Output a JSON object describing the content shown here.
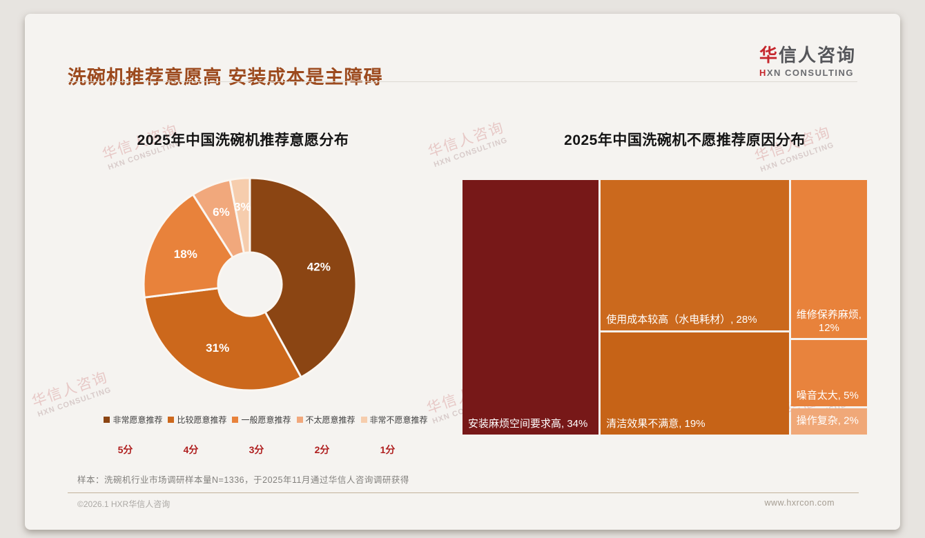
{
  "page": {
    "title": "洗碗机推荐意愿高 安装成本是主障碍",
    "logo": {
      "cn_first": "华",
      "cn_rest": "信人咨询",
      "en_first": "H",
      "en_rest": "XN CONSULTING"
    },
    "watermark": {
      "line1": "华信人咨询",
      "line2": "HXN CONSULTING"
    },
    "sample_note": "样本：洗碗机行业市场调研样本量N=1336，于2025年11月通过华信人咨询调研获得",
    "footer": {
      "copyright": "©2026.1 HXR华信人咨询",
      "website": "www.hxrcon.com"
    }
  },
  "chart_data": [
    {
      "type": "pie",
      "subtype": "donut",
      "title": "2025年中国洗碗机推荐意愿分布",
      "categories": [
        "非常愿意推荐",
        "比较愿意推荐",
        "一般愿意推荐",
        "不太愿意推荐",
        "非常不愿意推荐"
      ],
      "values": [
        42,
        31,
        18,
        6,
        3
      ],
      "labels": [
        "42%",
        "31%",
        "18%",
        "6%",
        "3%"
      ],
      "colors": [
        "#8B4513",
        "#CC681C",
        "#E8823B",
        "#F1A87C",
        "#F6CDAD"
      ],
      "score_labels": [
        "5分",
        "4分",
        "3分",
        "2分",
        "1分"
      ],
      "legend_position": "bottom",
      "start_angle_deg": 0,
      "direction": "clockwise"
    },
    {
      "type": "treemap",
      "title": "2025年中国洗碗机不愿推荐原因分布",
      "items": [
        {
          "label": "安装麻烦空间要求高",
          "value": 34,
          "display": "安装麻烦空间要求高, 34%",
          "color": "#771818"
        },
        {
          "label": "使用成本较高（水电耗材）",
          "value": 28,
          "display": "使用成本较高（水电耗材）, 28%",
          "color": "#CB691D"
        },
        {
          "label": "清洁效果不满意",
          "value": 19,
          "display": "清洁效果不满意, 19%",
          "color": "#C66317"
        },
        {
          "label": "维修保养麻烦",
          "value": 12,
          "display": "维修保养麻烦, 12%",
          "color": "#E8823B"
        },
        {
          "label": "噪音太大",
          "value": 5,
          "display": "噪音太大, 5%",
          "color": "#E8833D"
        },
        {
          "label": "操作复杂",
          "value": 2,
          "display": "操作复杂, 2%",
          "color": "#F0A878"
        }
      ]
    }
  ]
}
